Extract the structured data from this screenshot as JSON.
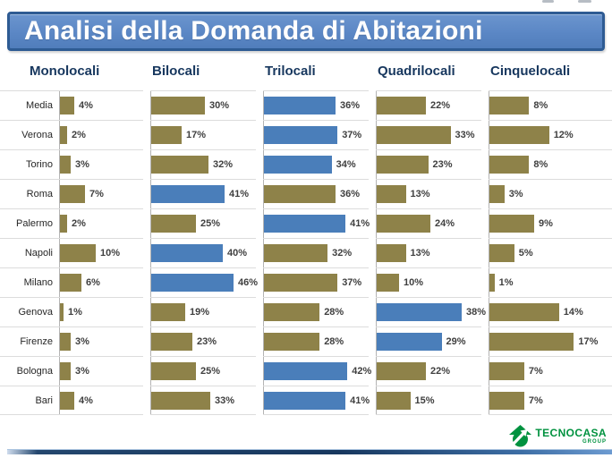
{
  "title": "Analisi della Domanda di Abitazioni",
  "logo": {
    "brand": "TECNOCASA",
    "sub": "GROUP"
  },
  "colors": {
    "bar_default": "#8E8249",
    "bar_highlight": "#4A7EBA",
    "banner_bg": "#5B87C5",
    "banner_border": "#2E5B93",
    "header_text": "#17375E",
    "logo_green": "#00923F"
  },
  "chart_data": {
    "type": "bar",
    "orientation": "horizontal",
    "title": "Analisi della Domanda di Abitazioni",
    "unit": "%",
    "legend_position": "none",
    "grid": "row separators only",
    "value_labels": "shown right of each bar",
    "highlight_rule": "highest value in each city row rendered blue, others olive",
    "categories": [
      "Media",
      "Verona",
      "Torino",
      "Roma",
      "Palermo",
      "Napoli",
      "Milano",
      "Genova",
      "Firenze",
      "Bologna",
      "Bari"
    ],
    "series": [
      {
        "name": "Monolocali",
        "axis_max": 25,
        "values": [
          4,
          2,
          3,
          7,
          2,
          10,
          6,
          1,
          3,
          3,
          4
        ]
      },
      {
        "name": "Bilocali",
        "axis_max": 50,
        "values": [
          30,
          17,
          32,
          41,
          25,
          40,
          46,
          19,
          23,
          25,
          33
        ]
      },
      {
        "name": "Trilocali",
        "axis_max": 45,
        "values": [
          36,
          37,
          34,
          36,
          41,
          32,
          37,
          28,
          28,
          42,
          41
        ]
      },
      {
        "name": "Quadrilocali",
        "axis_max": 40,
        "values": [
          22,
          33,
          23,
          13,
          24,
          13,
          10,
          38,
          29,
          22,
          15
        ]
      },
      {
        "name": "Cinquelocali",
        "axis_max": 18,
        "values": [
          8,
          12,
          8,
          3,
          9,
          5,
          1,
          14,
          17,
          7,
          7
        ]
      }
    ]
  }
}
